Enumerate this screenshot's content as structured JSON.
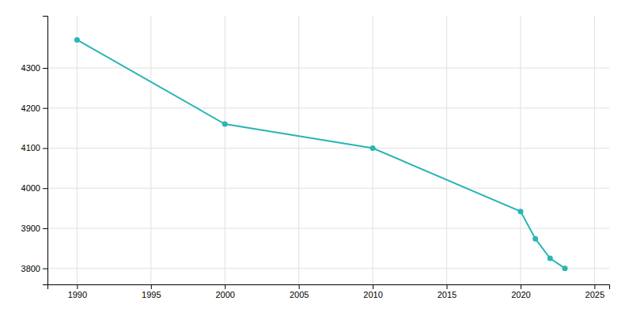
{
  "chart_data": {
    "type": "line",
    "x": [
      1990,
      2000,
      2010,
      2020,
      2021,
      2022,
      2023
    ],
    "values": [
      4370,
      4160,
      4100,
      3942,
      3874,
      3825,
      3800
    ],
    "color": "#2ab5b5",
    "marker": "circle",
    "xlim": [
      1988,
      2026
    ],
    "ylim": [
      3760,
      4430
    ],
    "xticks": [
      1990,
      1995,
      2000,
      2005,
      2010,
      2015,
      2020,
      2025
    ],
    "yticks": [
      3800,
      3900,
      4000,
      4100,
      4200,
      4300
    ],
    "grid": true
  }
}
